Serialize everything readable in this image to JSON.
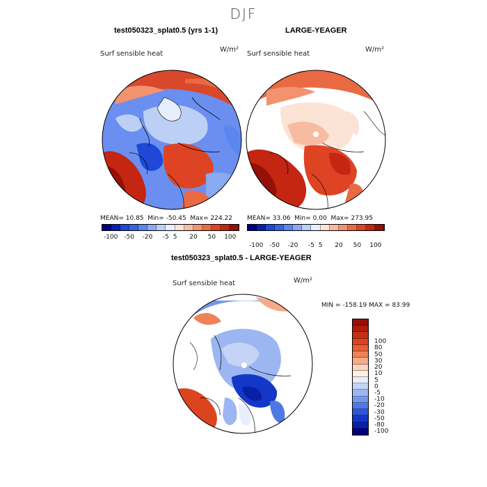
{
  "season": "DJF",
  "panels": [
    {
      "title": "test050323_splat0.5 (yrs 1-1)",
      "variable": "Surf sensible heat",
      "units": "W/m²",
      "stats": {
        "mean_label": "MEAN=",
        "mean": "10.85",
        "min_label": "Min=",
        "min": "-50.45",
        "max_label": "Max=",
        "max": "224.22"
      }
    },
    {
      "title": "LARGE-YEAGER",
      "variable": "Surf sensible heat",
      "units": "W/m²",
      "stats": {
        "mean_label": "MEAN=",
        "mean": "33.06",
        "min_label": "Min=",
        "min": "0.00",
        "max_label": "Max=",
        "max": "273.95"
      }
    },
    {
      "title": "test050323_splat0.5 - LARGE-YEAGER",
      "variable": "Surf sensible heat",
      "units": "W/m²",
      "stats": {
        "min_label": "MIN =",
        "min": "-158.19",
        "max_label": "MAX =",
        "max": "83.99"
      }
    }
  ],
  "colorbar_top": {
    "colors": [
      "#00007f",
      "#0a1fb0",
      "#1d49d6",
      "#3563e6",
      "#5b86ee",
      "#89a9f2",
      "#bcd0f6",
      "#e6eefb",
      "#fbe3d6",
      "#f7bba2",
      "#f2926f",
      "#ea6a44",
      "#de4424",
      "#c42612",
      "#951007"
    ],
    "tick_labels": [
      "-100",
      "-50",
      "-20",
      "-5",
      "5",
      "20",
      "50",
      "100"
    ]
  },
  "colorbar_diff": {
    "colors": [
      "#951007",
      "#b01c0a",
      "#c82e12",
      "#dc4420",
      "#e85f36",
      "#ef8258",
      "#f5aa88",
      "#fad4c0",
      "#fdf0e6",
      "#e8eefb",
      "#c4d3f6",
      "#9cb6f1",
      "#7596ec",
      "#4f77e6",
      "#2f55dc",
      "#1537c8",
      "#0820a6",
      "#00007f"
    ],
    "labels": [
      "100",
      "80",
      "50",
      "30",
      "20",
      "10",
      "5",
      "0",
      "-5",
      "-10",
      "-20",
      "-30",
      "-50",
      "-80",
      "-100"
    ]
  }
}
